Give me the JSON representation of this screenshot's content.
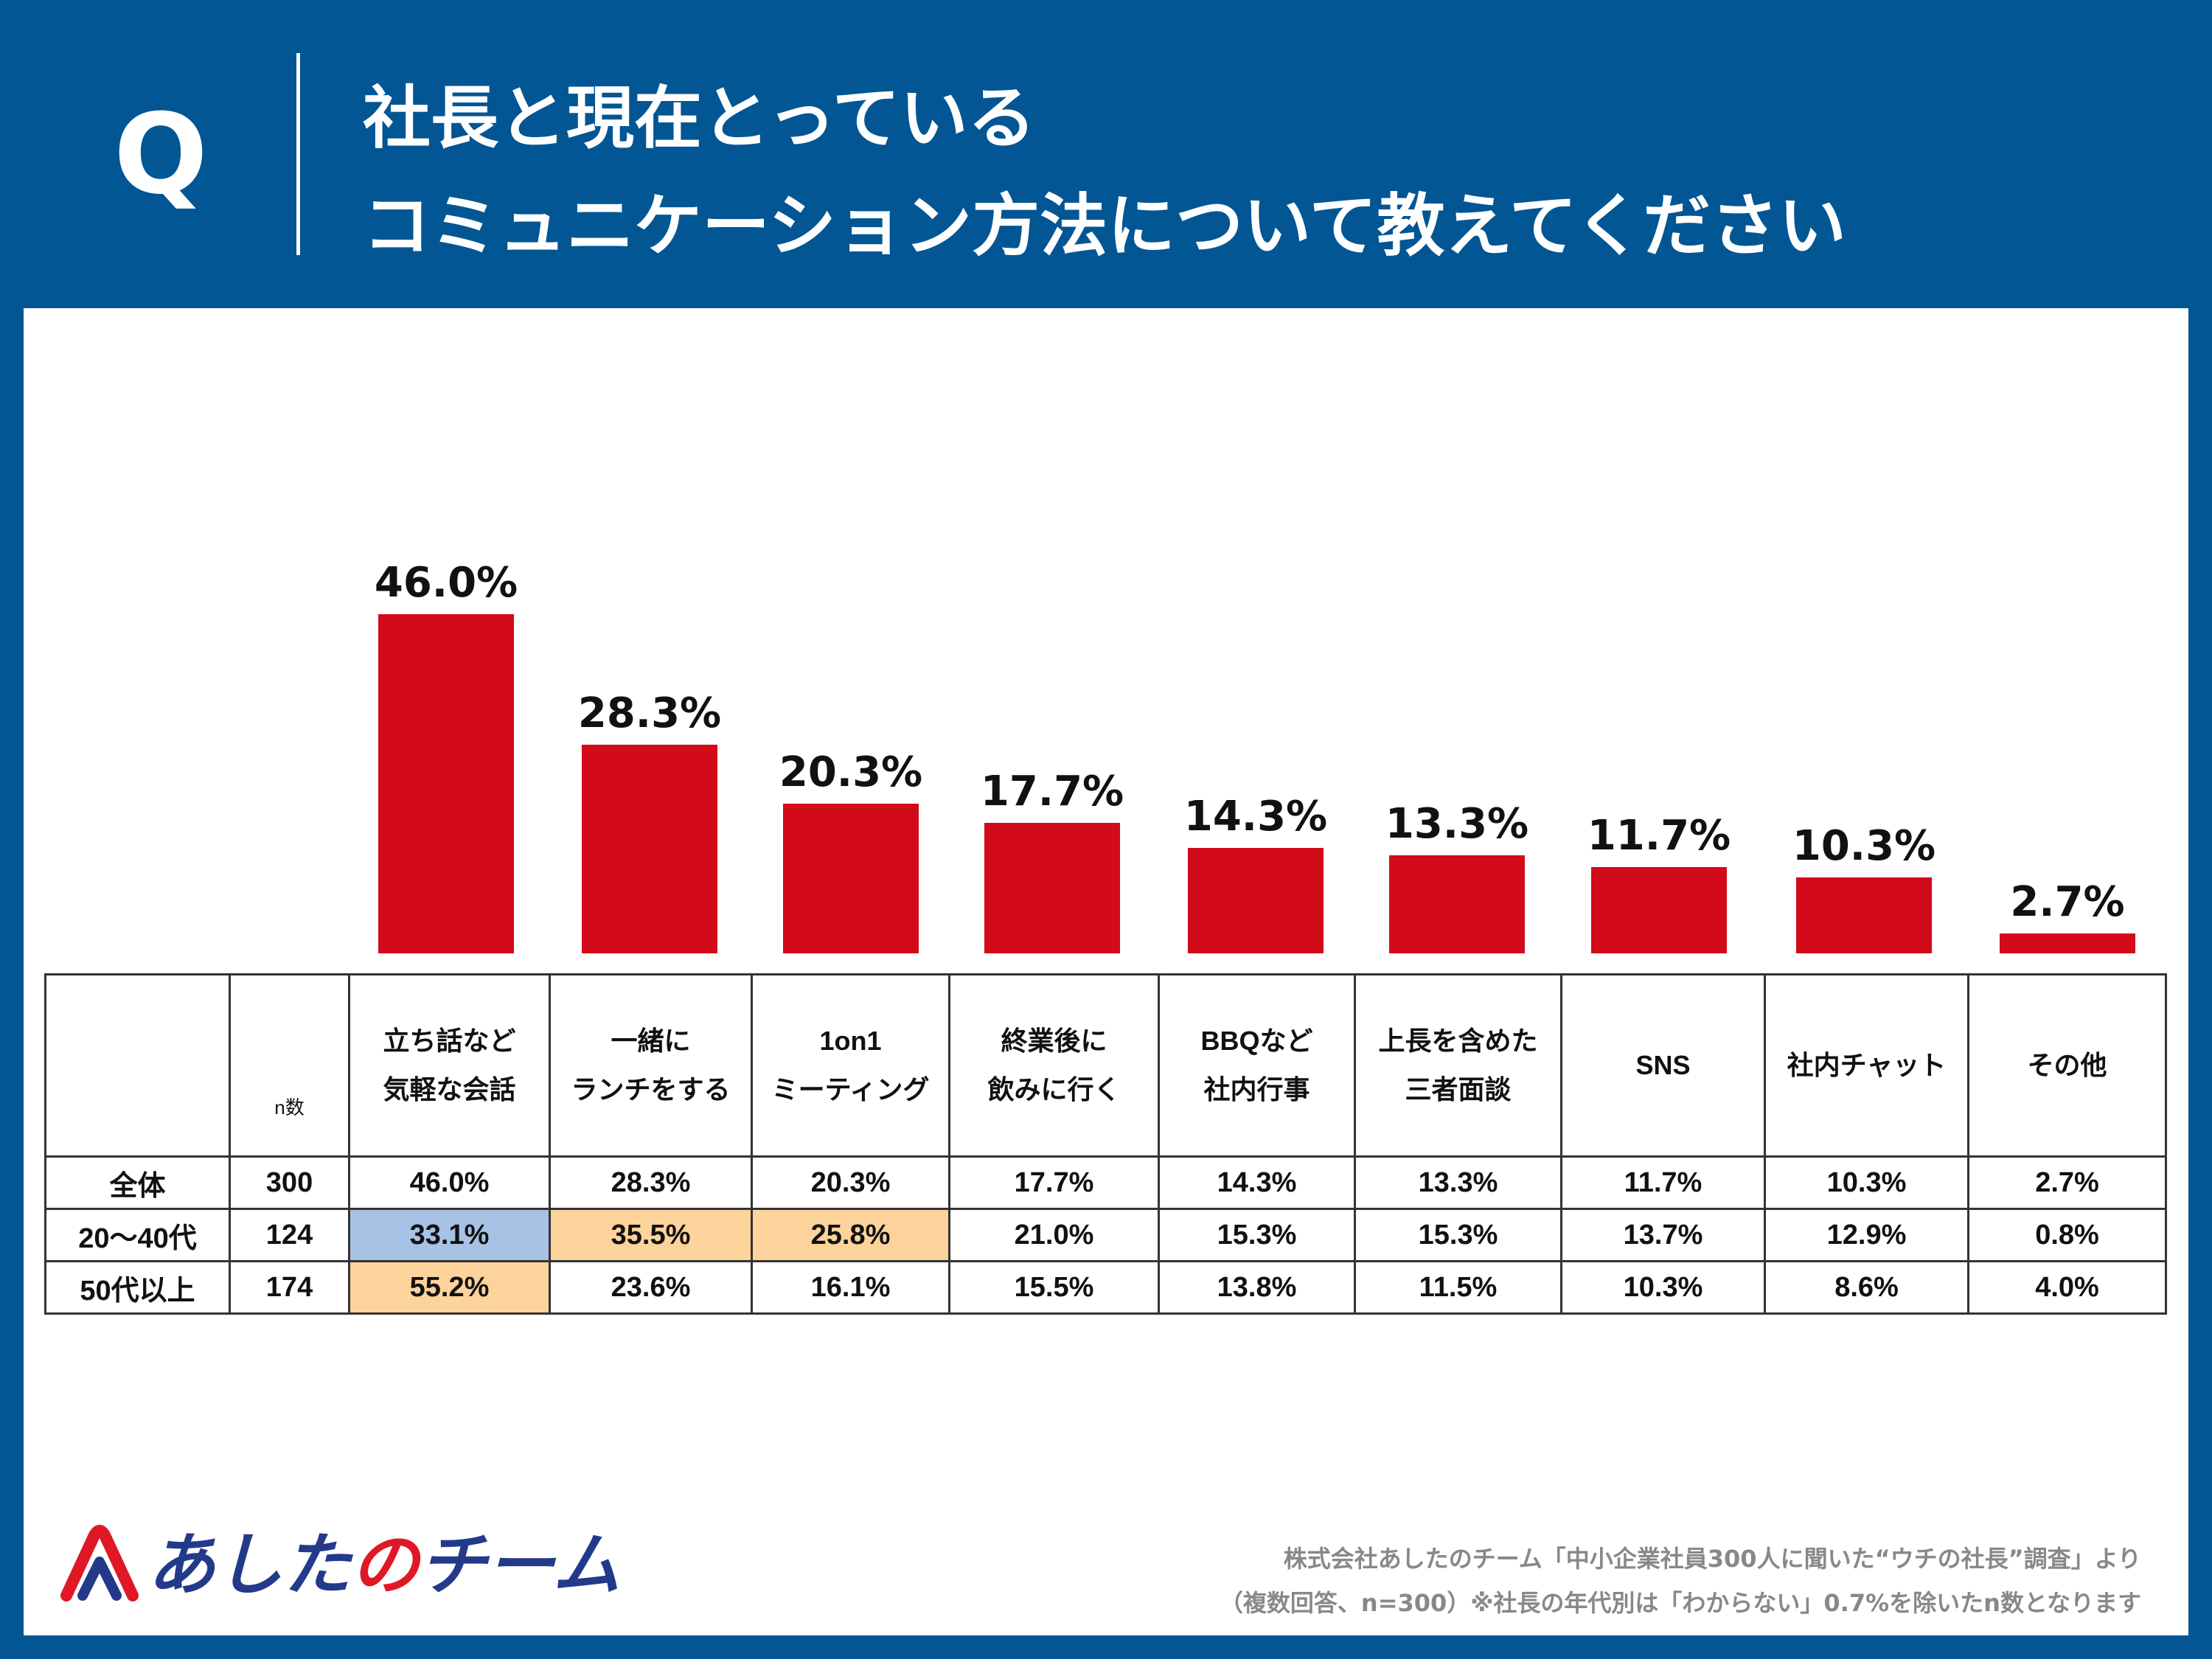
{
  "header": {
    "q_mark": "Q",
    "title_line1": "社長と現在とっている",
    "title_line2": "コミュニケーション方法について教えてください"
  },
  "colors": {
    "background": "#025694",
    "bar": "#d20a19",
    "highlight_blue": "#a8c2e6",
    "highlight_orange": "#fdd39c"
  },
  "chart_data": {
    "type": "bar",
    "title": "社長と現在とっているコミュニケーション方法について教えてください",
    "categories": [
      "立ち話など気軽な会話",
      "一緒にランチをする",
      "1on1ミーティング",
      "終業後に飲みに行く",
      "BBQなど社内行事",
      "上長を含めた三者面談",
      "SNS",
      "社内チャット",
      "その他"
    ],
    "values": [
      46.0,
      28.3,
      20.3,
      17.7,
      14.3,
      13.3,
      11.7,
      10.3,
      2.7
    ],
    "data_labels": [
      "46.0%",
      "28.3%",
      "20.3%",
      "17.7%",
      "14.3%",
      "13.3%",
      "11.7%",
      "10.3%",
      "2.7%"
    ],
    "ylim": [
      0,
      46.0
    ],
    "xlabel": "",
    "ylabel": "",
    "grid": false,
    "legend": "none"
  },
  "table": {
    "n_header": "n数",
    "headers": [
      [
        "立ち話など",
        "気軽な会話"
      ],
      [
        "一緒に",
        "ランチをする"
      ],
      [
        "1on1",
        "ミーティング"
      ],
      [
        "終業後に",
        "飲みに行く"
      ],
      [
        "BBQなど",
        "社内行事"
      ],
      [
        "上長を含めた",
        "三者面談"
      ],
      [
        "SNS"
      ],
      [
        "社内チャット"
      ],
      [
        "その他"
      ]
    ],
    "rows": [
      {
        "label": "全体",
        "n": "300",
        "values": [
          "46.0%",
          "28.3%",
          "20.3%",
          "17.7%",
          "14.3%",
          "13.3%",
          "11.7%",
          "10.3%",
          "2.7%"
        ]
      },
      {
        "label": "20～40代",
        "n": "124",
        "values": [
          "33.1%",
          "35.5%",
          "25.8%",
          "21.0%",
          "15.3%",
          "15.3%",
          "13.7%",
          "12.9%",
          "0.8%"
        ]
      },
      {
        "label": "50代以上",
        "n": "174",
        "values": [
          "55.2%",
          "23.6%",
          "16.1%",
          "15.5%",
          "13.8%",
          "11.5%",
          "10.3%",
          "8.6%",
          "4.0%"
        ]
      }
    ]
  },
  "footer": {
    "logo_text_pre": "あした",
    "logo_text_mid": "の",
    "logo_text_post": "チーム",
    "source_line1": "株式会社あしたのチーム「中小企業社員300人に聞いた“ウチの社長”調査」より",
    "source_line2": "（複数回答、n=300）※社長の年代別は「わからない」0.7%を除いたn数となります"
  }
}
